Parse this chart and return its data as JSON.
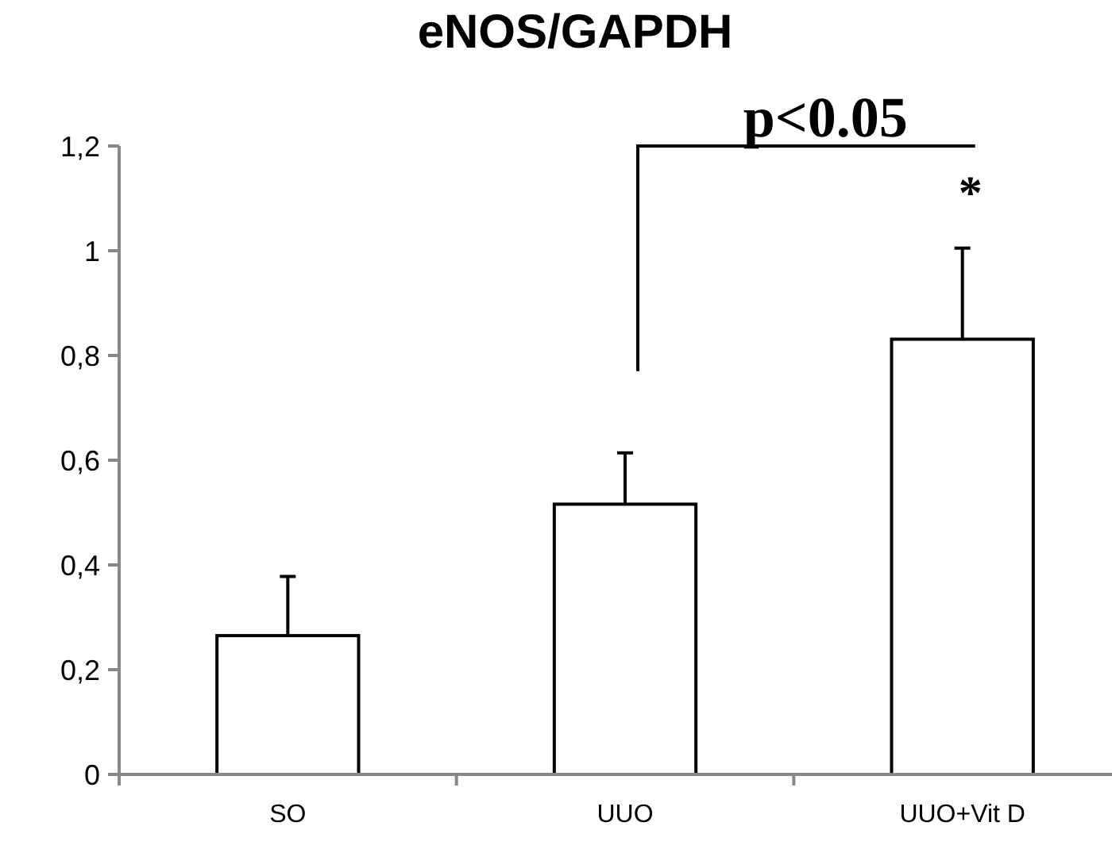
{
  "chart_data": {
    "type": "bar",
    "title": "eNOS/GAPDH",
    "categories": [
      "SO",
      "UUO",
      "UUO+Vit D"
    ],
    "values": [
      0.265,
      0.516,
      0.831
    ],
    "errors": [
      [
        0.265,
        0.378
      ],
      [
        0.516,
        0.614
      ],
      [
        0.831,
        1.005
      ]
    ],
    "color": "#ffffff",
    "ylim": [
      0,
      1.2
    ],
    "yticks": [
      {
        "value": 0,
        "label": "0"
      },
      {
        "value": 0.2,
        "label": "0,2"
      },
      {
        "value": 0.4,
        "label": "0,4"
      },
      {
        "value": 0.6,
        "label": "0,6"
      },
      {
        "value": 0.8,
        "label": "0,8"
      },
      {
        "value": 1,
        "label": "1"
      },
      {
        "value": 1.2,
        "label": "1,2"
      }
    ],
    "annotations": [
      "p<0.05",
      {
        "text": "*",
        "x": "UUO+Vit D",
        "y": 1.005
      }
    ],
    "grid": false
  }
}
